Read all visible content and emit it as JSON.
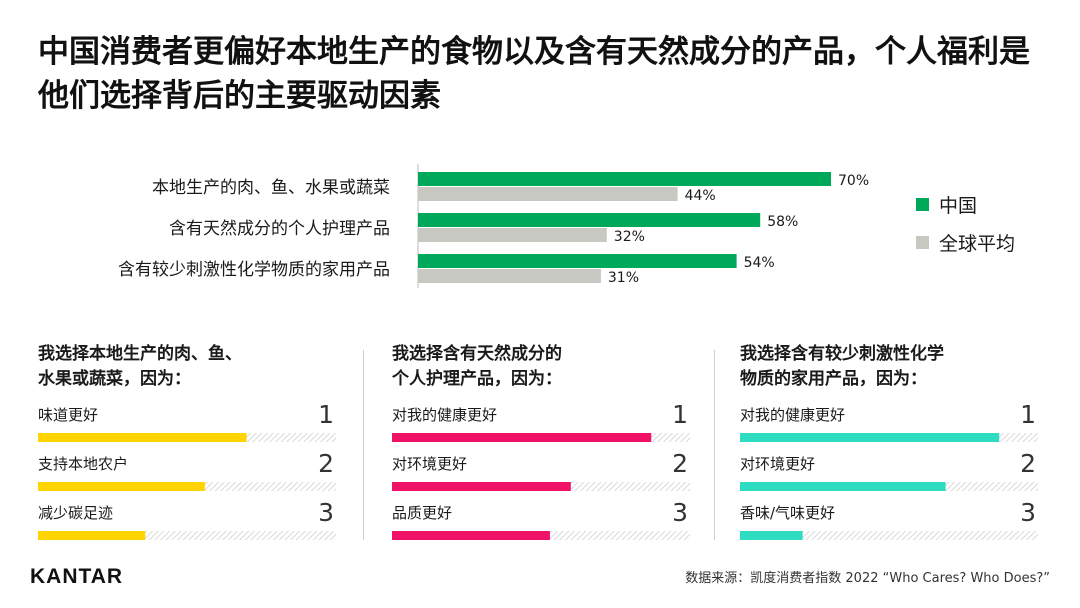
{
  "title": "中国消费者更偏好本地生产的食物以及含有天然成分的产品，个人福利是他们选择背后的主要驱动因素",
  "colors": {
    "china": "#00a859",
    "global": "#c8c8c2",
    "yellow": "#ffd400",
    "pink": "#ef1266",
    "teal": "#2ddcc1",
    "track": "#d9d9d9"
  },
  "chart_data": [
    {
      "type": "bar",
      "orientation": "horizontal",
      "categories": [
        "本地生产的肉、鱼、水果或蔬菜",
        "含有天然成分的个人护理产品",
        "含有较少刺激性化学物质的家用产品"
      ],
      "series": [
        {
          "name": "中国",
          "values": [
            70,
            58,
            54
          ],
          "labels": [
            "70%",
            "58%",
            "54%"
          ]
        },
        {
          "name": "全球平均",
          "values": [
            44,
            32,
            31
          ],
          "labels": [
            "44%",
            "32%",
            "31%"
          ]
        }
      ],
      "xlim": [
        0,
        100
      ],
      "legend": "right"
    },
    {
      "type": "bar",
      "orientation": "horizontal",
      "title": "我选择本地生产的肉、鱼、水果或蔬菜，因为：",
      "categories": [
        "味道更好",
        "支持本地农户",
        "减少碳足迹"
      ],
      "ranks": [
        "1",
        "2",
        "3"
      ],
      "values": [
        70,
        56,
        36
      ],
      "xlim": [
        0,
        100
      ]
    },
    {
      "type": "bar",
      "orientation": "horizontal",
      "title": "我选择含有天然成分的个人护理产品，因为：",
      "categories": [
        "对我的健康更好",
        "对环境更好",
        "品质更好"
      ],
      "ranks": [
        "1",
        "2",
        "3"
      ],
      "values": [
        87,
        60,
        53
      ],
      "xlim": [
        0,
        100
      ]
    },
    {
      "type": "bar",
      "orientation": "horizontal",
      "title": "我选择含有较少刺激性化学物质的家用产品，因为：",
      "categories": [
        "对我的健康更好",
        "对环境更好",
        "香味/气味更好"
      ],
      "ranks": [
        "1",
        "2",
        "3"
      ],
      "values": [
        87,
        69,
        21
      ],
      "xlim": [
        0,
        100
      ]
    }
  ],
  "panels": [
    {
      "title_line1": "我选择本地生产的肉、鱼、",
      "title_line2": "水果或蔬菜，因为："
    },
    {
      "title_line1": "我选择含有天然成分的",
      "title_line2": "个人护理产品，因为："
    },
    {
      "title_line1": "我选择含有较少刺激性化学",
      "title_line2": "物质的家用产品，因为："
    }
  ],
  "footer": {
    "logo": "KANTAR",
    "source": "数据来源：凯度消费者指数 2022 “Who Cares? Who Does?”"
  }
}
